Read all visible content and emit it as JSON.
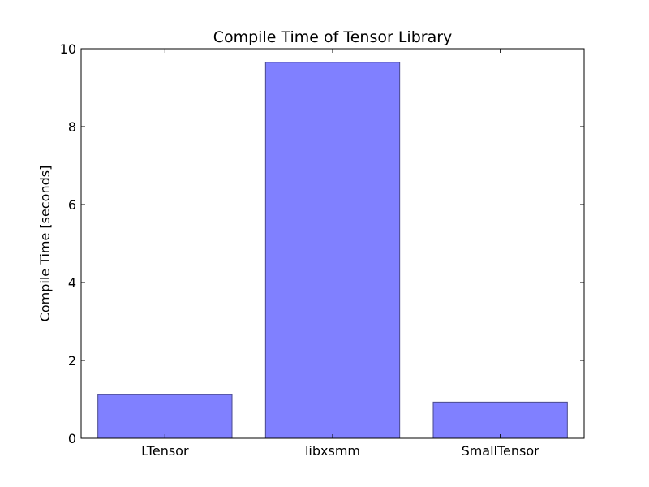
{
  "chart_data": {
    "type": "bar",
    "title": "Compile Time of Tensor Library",
    "xlabel": "",
    "ylabel": "Compile Time [seconds]",
    "categories": [
      "LTensor",
      "libxsmm",
      "SmallTensor"
    ],
    "values": [
      1.12,
      9.65,
      0.93
    ],
    "ylim": [
      0,
      10
    ],
    "yticks": [
      "0",
      "2",
      "4",
      "6",
      "8",
      "10"
    ],
    "grid": false,
    "legend": "none",
    "colors": {
      "bar_fill": "#8080ff",
      "bar_edge": "#4a4a8c",
      "axes": "#000000",
      "background": "#ffffff"
    }
  }
}
